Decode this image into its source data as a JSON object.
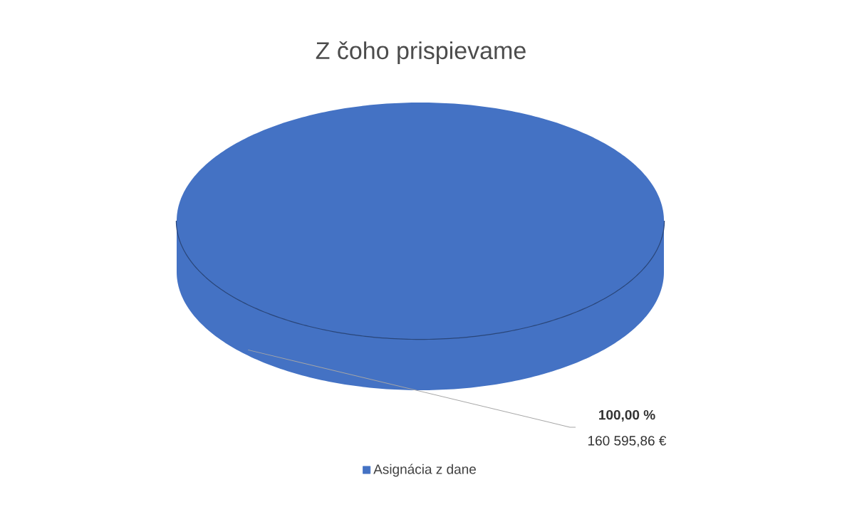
{
  "chart_data": {
    "type": "pie",
    "title": "Z čoho prispievame",
    "categories": [
      "Asignácia z dane"
    ],
    "values": [
      100
    ],
    "colors": [
      "#4472c4"
    ],
    "value_labels": [
      "100,00 %"
    ],
    "annotations": [
      "160 595,86 €"
    ],
    "legend": "bottom"
  }
}
